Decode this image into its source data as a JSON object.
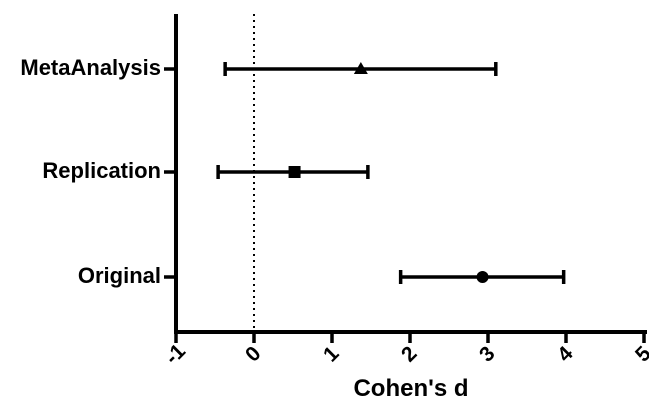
{
  "chart_data": {
    "type": "scatter",
    "xlabel": "Cohen's d",
    "ylabel": "",
    "xlim": [
      -1,
      5
    ],
    "x_ticks": [
      "-1",
      "0",
      "1",
      "2",
      "3",
      "4",
      "5"
    ],
    "reference_line": {
      "x": 0,
      "style": "dotted"
    },
    "grid": false,
    "legend": "none",
    "series": [
      {
        "category": "MetaAnalysis",
        "marker": "triangle",
        "estimate": 1.37,
        "ci_low": -0.37,
        "ci_high": 3.1
      },
      {
        "category": "Replication",
        "marker": "square",
        "estimate": 0.52,
        "ci_low": -0.46,
        "ci_high": 1.46
      },
      {
        "category": "Original",
        "marker": "circle",
        "estimate": 2.93,
        "ci_low": 1.88,
        "ci_high": 3.97
      }
    ]
  }
}
